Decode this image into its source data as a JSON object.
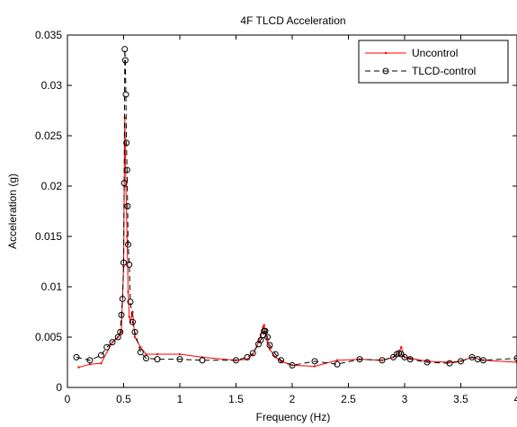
{
  "chart_data": {
    "type": "line",
    "title": "4F TLCD Acceleration",
    "xlabel": "Frequency (Hz)",
    "ylabel": "Acceleration (g)",
    "xlim": [
      0,
      4
    ],
    "ylim": [
      0,
      0.035
    ],
    "xticks": [
      0,
      0.5,
      1,
      1.5,
      2,
      2.5,
      3,
      3.5,
      4
    ],
    "xtick_labels": [
      "0",
      "0.5",
      "1",
      "1.5",
      "2",
      "2.5",
      "3",
      "3.5",
      "4"
    ],
    "yticks": [
      0,
      0.005,
      0.01,
      0.015,
      0.02,
      0.025,
      0.03,
      0.035
    ],
    "ytick_labels": [
      "0",
      "0.005",
      "0.01",
      "0.015",
      "0.02",
      "0.025",
      "0.03",
      "0.035"
    ],
    "grid": false,
    "legend_position": "top-right",
    "series": [
      {
        "name": "Uncontrol",
        "color": "#ff0000",
        "line_style": "solid",
        "marker": "dot",
        "x": [
          0.1,
          0.2,
          0.3,
          0.4,
          0.45,
          0.48,
          0.5,
          0.505,
          0.51,
          0.52,
          0.53,
          0.54,
          0.55,
          0.56,
          0.58,
          0.6,
          0.65,
          0.7,
          0.8,
          1.0,
          1.2,
          1.5,
          1.6,
          1.65,
          1.7,
          1.72,
          1.74,
          1.75,
          1.76,
          1.78,
          1.8,
          1.85,
          1.9,
          2.0,
          2.2,
          2.4,
          2.6,
          2.8,
          2.9,
          2.95,
          2.97,
          3.0,
          3.05,
          3.2,
          3.4,
          3.5,
          3.6,
          3.7,
          4.0
        ],
        "y": [
          0.002,
          0.0023,
          0.0024,
          0.0045,
          0.005,
          0.0055,
          0.012,
          0.02,
          0.0268,
          0.02,
          0.015,
          0.0095,
          0.007,
          0.0065,
          0.0075,
          0.005,
          0.004,
          0.0033,
          0.0033,
          0.0033,
          0.003,
          0.0027,
          0.0028,
          0.0033,
          0.0045,
          0.0052,
          0.006,
          0.0062,
          0.0055,
          0.0045,
          0.0038,
          0.003,
          0.0026,
          0.0022,
          0.0021,
          0.0027,
          0.0028,
          0.0027,
          0.003,
          0.0035,
          0.004,
          0.003,
          0.0029,
          0.0026,
          0.0025,
          0.0026,
          0.003,
          0.0027,
          0.0025
        ]
      },
      {
        "name": "TLCD-control",
        "color": "#000000",
        "line_style": "dashed",
        "marker": "circle",
        "x": [
          0.08,
          0.2,
          0.3,
          0.35,
          0.4,
          0.45,
          0.47,
          0.48,
          0.49,
          0.5,
          0.505,
          0.51,
          0.515,
          0.52,
          0.525,
          0.53,
          0.535,
          0.54,
          0.55,
          0.56,
          0.58,
          0.6,
          0.65,
          0.7,
          0.8,
          1.0,
          1.2,
          1.5,
          1.6,
          1.65,
          1.7,
          1.72,
          1.74,
          1.75,
          1.76,
          1.78,
          1.8,
          1.85,
          1.9,
          2.0,
          2.2,
          2.4,
          2.6,
          2.8,
          2.9,
          2.93,
          2.95,
          2.97,
          3.0,
          3.05,
          3.2,
          3.4,
          3.5,
          3.6,
          3.65,
          3.7,
          4.0
        ],
        "y": [
          0.003,
          0.0027,
          0.0032,
          0.004,
          0.0045,
          0.005,
          0.0055,
          0.0072,
          0.0088,
          0.0124,
          0.0203,
          0.0336,
          0.0325,
          0.0291,
          0.0243,
          0.0216,
          0.018,
          0.0142,
          0.0122,
          0.0085,
          0.0065,
          0.0055,
          0.0035,
          0.0029,
          0.0028,
          0.0028,
          0.0027,
          0.0027,
          0.003,
          0.0034,
          0.0043,
          0.0047,
          0.0052,
          0.0056,
          0.0056,
          0.005,
          0.0042,
          0.0033,
          0.0027,
          0.0022,
          0.0026,
          0.0023,
          0.0028,
          0.0027,
          0.003,
          0.0033,
          0.0034,
          0.0033,
          0.003,
          0.0028,
          0.0025,
          0.0024,
          0.0026,
          0.003,
          0.0028,
          0.0027,
          0.0029
        ]
      }
    ]
  }
}
